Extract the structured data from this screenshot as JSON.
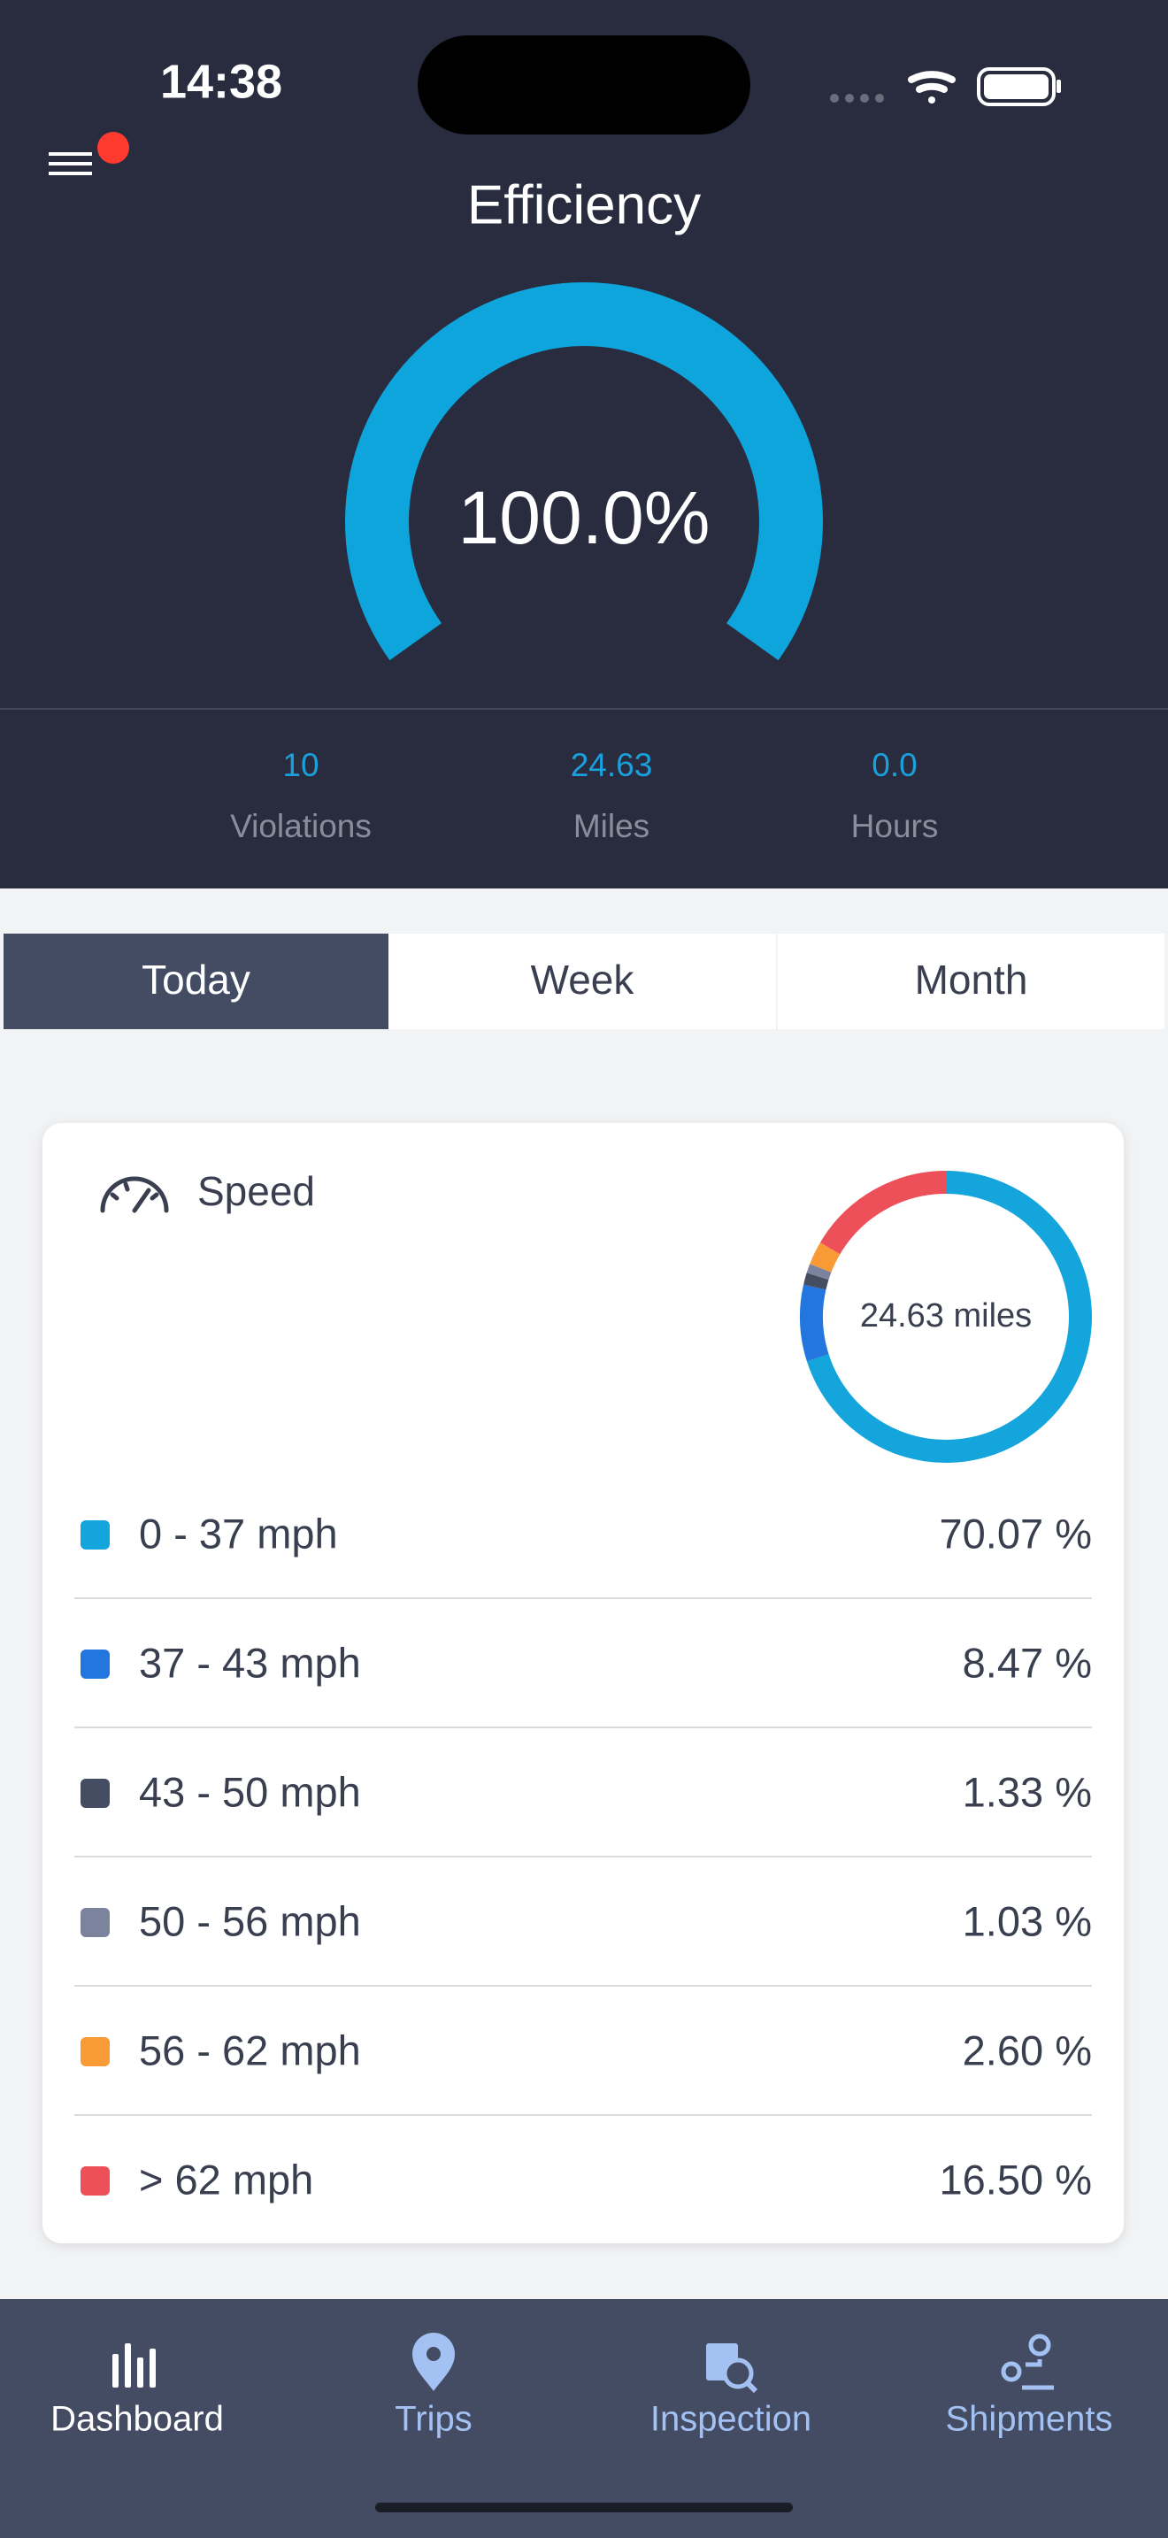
{
  "status_bar": {
    "time": "14:38"
  },
  "header": {
    "title": "Efficiency",
    "gauge_label": "100.0%"
  },
  "stats": [
    {
      "value": "10",
      "label": "Violations"
    },
    {
      "value": "24.63",
      "label": "Miles"
    },
    {
      "value": "0.0",
      "label": "Hours"
    }
  ],
  "tabs": [
    "Today",
    "Week",
    "Month"
  ],
  "selected_tab": 0,
  "speed_card": {
    "title": "Speed",
    "total_label": "24.63 miles",
    "rows": [
      {
        "label": "0 - 37 mph",
        "value": 70.07,
        "value_label": "70.07 %",
        "color": "#14a5dc"
      },
      {
        "label": "37 - 43 mph",
        "value": 8.47,
        "value_label": "8.47 %",
        "color": "#2276dd"
      },
      {
        "label": "43 - 50 mph",
        "value": 1.33,
        "value_label": "1.33 %",
        "color": "#454d62"
      },
      {
        "label": "50 - 56 mph",
        "value": 1.03,
        "value_label": "1.03 %",
        "color": "#7b849c"
      },
      {
        "label": "56 - 62 mph",
        "value": 2.6,
        "value_label": "2.60 %",
        "color": "#f89b36"
      },
      {
        "label": "> 62 mph",
        "value": 16.5,
        "value_label": "16.50 %",
        "color": "#ee5059"
      }
    ]
  },
  "nav": [
    "Dashboard",
    "Trips",
    "Inspection",
    "Shipments"
  ],
  "selected_nav": 0
}
